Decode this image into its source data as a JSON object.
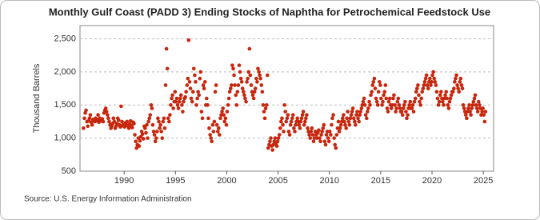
{
  "chart_data": {
    "type": "scatter",
    "title": "Monthly Gulf Coast (PADD 3) Ending Stocks of Naphtha for Petrochemical Feedstock Use",
    "y_label": "Thousand Barrels",
    "source": "Source: U.S. Energy Information Administration",
    "color": "#c8260c",
    "grid": true,
    "xlim": [
      1985.7,
      2026.0
    ],
    "xticks": [
      1990,
      1995,
      2000,
      2005,
      2010,
      2015,
      2020,
      2025
    ],
    "ylim": [
      500,
      2700
    ],
    "yticks": [
      500,
      {
        "value": 1000,
        "label": "1,000"
      },
      {
        "value": 1500,
        "label": "1,500"
      },
      {
        "value": 2000,
        "label": "2,000"
      },
      {
        "value": 2500,
        "label": "2,500"
      }
    ],
    "x": [
      1986.04,
      1986.13,
      1986.21,
      1986.29,
      1986.38,
      1986.46,
      1986.54,
      1986.63,
      1986.71,
      1986.79,
      1986.88,
      1986.96,
      1987.04,
      1987.13,
      1987.21,
      1987.29,
      1987.38,
      1987.46,
      1987.54,
      1987.63,
      1987.71,
      1987.79,
      1987.88,
      1987.96,
      1988.04,
      1988.13,
      1988.21,
      1988.29,
      1988.38,
      1988.46,
      1988.54,
      1988.63,
      1988.71,
      1988.79,
      1988.88,
      1988.96,
      1989.04,
      1989.13,
      1989.21,
      1989.29,
      1989.38,
      1989.46,
      1989.54,
      1989.63,
      1989.71,
      1989.79,
      1989.88,
      1989.96,
      1990.04,
      1990.13,
      1990.21,
      1990.29,
      1990.38,
      1990.46,
      1990.54,
      1990.63,
      1990.71,
      1990.79,
      1990.88,
      1990.96,
      1991.04,
      1991.13,
      1991.21,
      1991.29,
      1991.38,
      1991.46,
      1991.54,
      1991.63,
      1991.71,
      1991.79,
      1991.88,
      1991.96,
      1992.04,
      1992.13,
      1992.21,
      1992.29,
      1992.38,
      1992.46,
      1992.54,
      1992.63,
      1992.71,
      1992.79,
      1992.88,
      1992.96,
      1993.04,
      1993.13,
      1993.21,
      1993.29,
      1993.38,
      1993.46,
      1993.54,
      1993.63,
      1993.71,
      1993.79,
      1993.88,
      1993.96,
      1994.04,
      1994.13,
      1994.21,
      1994.29,
      1994.38,
      1994.46,
      1994.54,
      1994.63,
      1994.71,
      1994.79,
      1994.88,
      1994.96,
      1995.04,
      1995.13,
      1995.21,
      1995.29,
      1995.38,
      1995.46,
      1995.54,
      1995.63,
      1995.71,
      1995.79,
      1995.88,
      1995.96,
      1996.04,
      1996.13,
      1996.21,
      1996.29,
      1996.38,
      1996.46,
      1996.54,
      1996.63,
      1996.71,
      1996.79,
      1996.88,
      1996.96,
      1997.04,
      1997.13,
      1997.21,
      1997.29,
      1997.38,
      1997.46,
      1997.54,
      1997.63,
      1997.71,
      1997.79,
      1997.88,
      1997.96,
      1998.04,
      1998.13,
      1998.21,
      1998.29,
      1998.38,
      1998.46,
      1998.54,
      1998.63,
      1998.71,
      1998.79,
      1998.88,
      1998.96,
      1999.04,
      1999.13,
      1999.21,
      1999.29,
      1999.38,
      1999.46,
      1999.54,
      1999.63,
      1999.71,
      1999.79,
      1999.88,
      1999.96,
      2000.04,
      2000.13,
      2000.21,
      2000.29,
      2000.38,
      2000.46,
      2000.54,
      2000.63,
      2000.71,
      2000.79,
      2000.88,
      2000.96,
      2001.04,
      2001.13,
      2001.21,
      2001.29,
      2001.38,
      2001.46,
      2001.54,
      2001.63,
      2001.71,
      2001.79,
      2001.88,
      2001.96,
      2002.04,
      2002.13,
      2002.21,
      2002.29,
      2002.38,
      2002.46,
      2002.54,
      2002.63,
      2002.71,
      2002.79,
      2002.88,
      2002.96,
      2003.04,
      2003.13,
      2003.21,
      2003.29,
      2003.38,
      2003.46,
      2003.54,
      2003.63,
      2003.71,
      2003.79,
      2003.88,
      2003.96,
      2004.04,
      2004.13,
      2004.21,
      2004.29,
      2004.38,
      2004.46,
      2004.54,
      2004.63,
      2004.71,
      2004.79,
      2004.88,
      2004.96,
      2005.04,
      2005.13,
      2005.21,
      2005.29,
      2005.38,
      2005.46,
      2005.54,
      2005.63,
      2005.71,
      2005.79,
      2005.88,
      2005.96,
      2006.04,
      2006.13,
      2006.21,
      2006.29,
      2006.38,
      2006.46,
      2006.54,
      2006.63,
      2006.71,
      2006.79,
      2006.88,
      2006.96,
      2007.04,
      2007.13,
      2007.21,
      2007.29,
      2007.38,
      2007.46,
      2007.54,
      2007.63,
      2007.71,
      2007.79,
      2007.88,
      2007.96,
      2008.04,
      2008.13,
      2008.21,
      2008.29,
      2008.38,
      2008.46,
      2008.54,
      2008.63,
      2008.71,
      2008.79,
      2008.88,
      2008.96,
      2009.04,
      2009.13,
      2009.21,
      2009.29,
      2009.38,
      2009.46,
      2009.54,
      2009.63,
      2009.71,
      2009.79,
      2009.88,
      2009.96,
      2010.04,
      2010.13,
      2010.21,
      2010.29,
      2010.38,
      2010.46,
      2010.54,
      2010.63,
      2010.71,
      2010.79,
      2010.88,
      2010.96,
      2011.04,
      2011.13,
      2011.21,
      2011.29,
      2011.38,
      2011.46,
      2011.54,
      2011.63,
      2011.71,
      2011.79,
      2011.88,
      2011.96,
      2012.04,
      2012.13,
      2012.21,
      2012.29,
      2012.38,
      2012.46,
      2012.54,
      2012.63,
      2012.71,
      2012.79,
      2012.88,
      2012.96,
      2013.04,
      2013.13,
      2013.21,
      2013.29,
      2013.38,
      2013.46,
      2013.54,
      2013.63,
      2013.71,
      2013.79,
      2013.88,
      2013.96,
      2014.04,
      2014.13,
      2014.21,
      2014.29,
      2014.38,
      2014.46,
      2014.54,
      2014.63,
      2014.71,
      2014.79,
      2014.88,
      2014.96,
      2015.04,
      2015.13,
      2015.21,
      2015.29,
      2015.38,
      2015.46,
      2015.54,
      2015.63,
      2015.71,
      2015.79,
      2015.88,
      2015.96,
      2016.04,
      2016.13,
      2016.21,
      2016.29,
      2016.38,
      2016.46,
      2016.54,
      2016.63,
      2016.71,
      2016.79,
      2016.88,
      2016.96,
      2017.04,
      2017.13,
      2017.21,
      2017.29,
      2017.38,
      2017.46,
      2017.54,
      2017.63,
      2017.71,
      2017.79,
      2017.88,
      2017.96,
      2018.04,
      2018.13,
      2018.21,
      2018.29,
      2018.38,
      2018.46,
      2018.54,
      2018.63,
      2018.71,
      2018.79,
      2018.88,
      2018.96,
      2019.04,
      2019.13,
      2019.21,
      2019.29,
      2019.38,
      2019.46,
      2019.54,
      2019.63,
      2019.71,
      2019.79,
      2019.88,
      2019.96,
      2020.04,
      2020.13,
      2020.21,
      2020.29,
      2020.38,
      2020.46,
      2020.54,
      2020.63,
      2020.71,
      2020.79,
      2020.88,
      2020.96,
      2021.04,
      2021.13,
      2021.21,
      2021.29,
      2021.38,
      2021.46,
      2021.54,
      2021.63,
      2021.71,
      2021.79,
      2021.88,
      2021.96,
      2022.04,
      2022.13,
      2022.21,
      2022.29,
      2022.38,
      2022.46,
      2022.54,
      2022.63,
      2022.71,
      2022.79,
      2022.88,
      2022.96,
      2023.04,
      2023.13,
      2023.21,
      2023.29,
      2023.38,
      2023.46,
      2023.54,
      2023.63,
      2023.71,
      2023.79,
      2023.88,
      2023.96,
      2024.04,
      2024.13,
      2024.21,
      2024.29,
      2024.38,
      2024.46,
      2024.54,
      2024.63,
      2024.71,
      2024.79,
      2024.88,
      2024.96,
      2025.04,
      2025.13,
      2025.21
    ],
    "values": [
      1150,
      1300,
      1380,
      1420,
      1250,
      1180,
      1260,
      1300,
      1350,
      1240,
      1200,
      1280,
      1270,
      1250,
      1300,
      1260,
      1280,
      1350,
      1240,
      1300,
      1270,
      1260,
      1290,
      1250,
      1380,
      1420,
      1450,
      1400,
      1350,
      1300,
      1250,
      1200,
      1150,
      1180,
      1220,
      1300,
      1250,
      1150,
      1180,
      1220,
      1300,
      1270,
      1200,
      1170,
      1480,
      1250,
      1200,
      1180,
      1170,
      1230,
      1200,
      1250,
      1180,
      1150,
      1210,
      1260,
      1190,
      1160,
      1240,
      1220,
      1050,
      950,
      850,
      900,
      1000,
      880,
      960,
      1020,
      1100,
      1060,
      990,
      1180,
      1150,
      1080,
      1200,
      1000,
      1250,
      1300,
      1350,
      1500,
      1450,
      1200,
      1100,
      1050,
      950,
      1000,
      1100,
      1300,
      1250,
      1150,
      1200,
      1100,
      1000,
      1250,
      1300,
      1150,
      1800,
      2350,
      2050,
      1300,
      1250,
      1350,
      1500,
      1600,
      1650,
      1450,
      1550,
      1700,
      1550,
      1600,
      1500,
      1450,
      1550,
      1600,
      1650,
      1500,
      1400,
      1550,
      1600,
      1620,
      1700,
      1800,
      1900,
      2480,
      1850,
      1750,
      1600,
      1550,
      1700,
      2050,
      1950,
      1850,
      1500,
      1600,
      1700,
      1650,
      1900,
      2000,
      1400,
      1300,
      1800,
      1750,
      1850,
      1500,
      1600,
      1500,
      1300,
      1150,
      1050,
      1000,
      950,
      1200,
      1100,
      1250,
      1700,
      1800,
      1200,
      1100,
      1150,
      1050,
      1300,
      1350,
      1400,
      1450,
      1350,
      1250,
      1300,
      1200,
      1400,
      1500,
      1600,
      1700,
      1750,
      1800,
      2100,
      2050,
      1950,
      1800,
      1650,
      1500,
      1700,
      1800,
      2100,
      2000,
      1900,
      1850,
      1750,
      1700,
      1650,
      1600,
      1550,
      1850,
      1900,
      2000,
      2350,
      1950,
      1800,
      1700,
      1650,
      1600,
      1700,
      1750,
      1900,
      1850,
      2050,
      2000,
      1950,
      1900,
      1800,
      1700,
      1500,
      1400,
      1300,
      1450,
      1500,
      1950,
      850,
      900,
      950,
      1000,
      880,
      820,
      900,
      950,
      1000,
      920,
      880,
      950,
      1000,
      1050,
      1150,
      1250,
      1300,
      1200,
      1100,
      1500,
      1400,
      1250,
      1300,
      1350,
      1100,
      1050,
      1200,
      1250,
      1300,
      1350,
      1150,
      1100,
      1200,
      1250,
      1300,
      1250,
      1200,
      1150,
      1250,
      1300,
      1350,
      1400,
      1200,
      1250,
      1300,
      1350,
      1150,
      1100,
      1050,
      1000,
      1100,
      1150,
      1050,
      950,
      1000,
      1100,
      1050,
      1000,
      1080,
      1120,
      1000,
      950,
      1050,
      1100,
      1150,
      1200,
      950,
      900,
      1050,
      1100,
      1000,
      950,
      1100,
      1050,
      1200,
      1300,
      1350,
      1000,
      900,
      850,
      1050,
      1150,
      1250,
      1100,
      1150,
      1200,
      1250,
      1300,
      1350,
      1250,
      1200,
      1150,
      1300,
      1400,
      1250,
      1200,
      1300,
      1350,
      1400,
      1450,
      1300,
      1250,
      1200,
      1350,
      1400,
      1300,
      1250,
      1350,
      1400,
      1450,
      1500,
      1550,
      1600,
      1500,
      1350,
      1300,
      1400,
      1450,
      1550,
      1500,
      1650,
      1700,
      1800,
      1850,
      1900,
      1750,
      1600,
      1550,
      1500,
      1700,
      1850,
      1800,
      1600,
      1500,
      1550,
      1650,
      1700,
      1800,
      1600,
      1450,
      1400,
      1550,
      1600,
      1500,
      1450,
      1500,
      1600,
      1650,
      1500,
      1400,
      1450,
      1550,
      1600,
      1500,
      1450,
      1400,
      1400,
      1350,
      1450,
      1500,
      1550,
      1400,
      1300,
      1350,
      1450,
      1500,
      1550,
      1450,
      1450,
      1500,
      1400,
      1550,
      1600,
      1700,
      1750,
      1800,
      1650,
      1550,
      1500,
      1600,
      1700,
      1750,
      1800,
      1850,
      1900,
      1950,
      1800,
      1750,
      1850,
      1900,
      1800,
      1850,
      1950,
      2000,
      1900,
      1850,
      1800,
      1700,
      1600,
      1500,
      1550,
      1650,
      1700,
      1600,
      1550,
      1500,
      1600,
      1650,
      1700,
      1600,
      1500,
      1450,
      1550,
      1600,
      1650,
      1700,
      1700,
      1750,
      1850,
      1900,
      1950,
      1800,
      1750,
      1700,
      1850,
      1900,
      1800,
      1750,
      1500,
      1450,
      1400,
      1350,
      1300,
      1400,
      1450,
      1500,
      1400,
      1350,
      1450,
      1500,
      1550,
      1600,
      1650,
      1500,
      1450,
      1400,
      1550,
      1500,
      1450,
      1350,
      1400,
      1450,
      1350,
      1250,
      1400
    ]
  }
}
